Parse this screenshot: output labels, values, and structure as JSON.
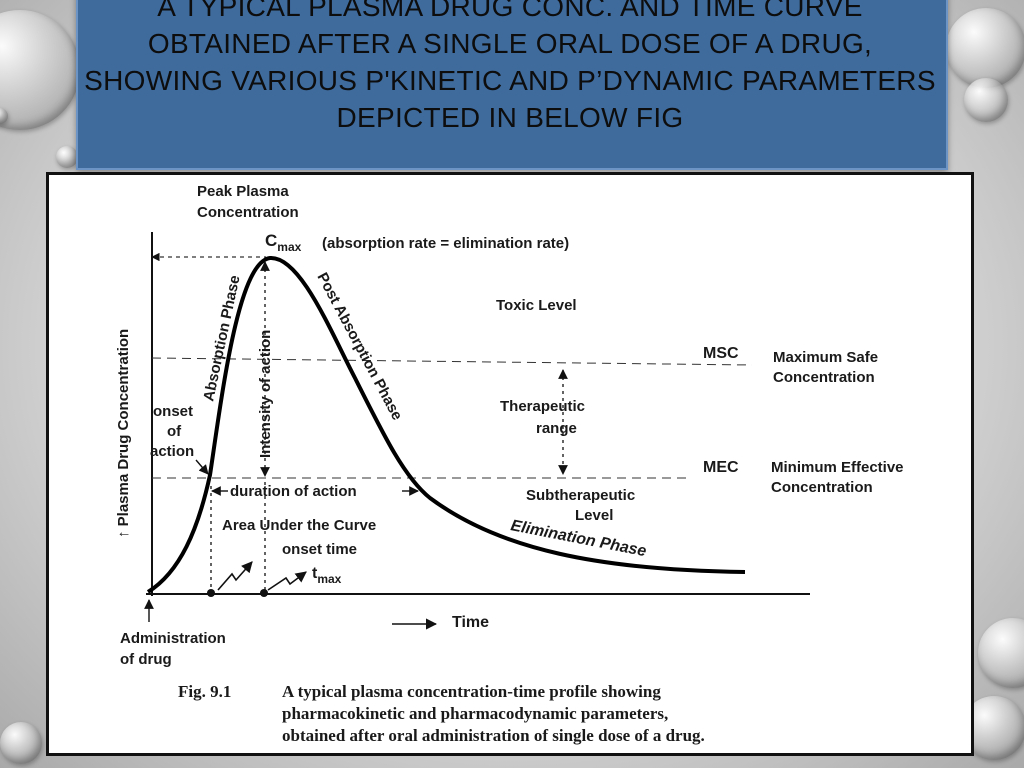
{
  "slide": {
    "title": "A typical plasma drug conc. and time curve obtained after a single oral dose of a drug, showing various p'kinetic and p’dynamic parameters depicted in below fig"
  },
  "figure": {
    "peak_label_1": "Peak Plasma",
    "peak_label_2": "Concentration",
    "cmax_c": "C",
    "cmax_sub": "max",
    "cmax_note": "(absorption rate = elimination rate)",
    "y_axis_label": "↑ Plasma Drug Concentration",
    "x_axis_label": "Time",
    "absorption_phase": "Absorption Phase",
    "post_absorption_phase": "Post Absorption Phase",
    "intensity_of_action": "Intensity of action",
    "toxic_level": "Toxic Level",
    "msc": "MSC",
    "msc_full_1": "Maximum Safe",
    "msc_full_2": "Concentration",
    "therapeutic_1": "Therapeutic",
    "therapeutic_2": "range",
    "mec": "MEC",
    "mec_full_1": "Minimum Effective",
    "mec_full_2": "Concentration",
    "onset_1": "onset",
    "onset_2": "of",
    "onset_3": "action",
    "duration_of_action": "duration of action",
    "subtherapeutic_1": "Subtherapeutic",
    "subtherapeutic_2": "Level",
    "auc": "Area Under the Curve",
    "onset_time": "onset time",
    "tmax_t": "t",
    "tmax_sub": "max",
    "elimination_phase": "Elimination Phase",
    "administration_1": "Administration",
    "administration_2": "of drug",
    "caption_label": "Fig. 9.1",
    "caption_line_1": "A typical plasma concentration-time profile showing",
    "caption_line_2": "pharmacokinetic and pharmacodynamic parameters,",
    "caption_line_3": "obtained after oral administration of single dose of a drug."
  }
}
